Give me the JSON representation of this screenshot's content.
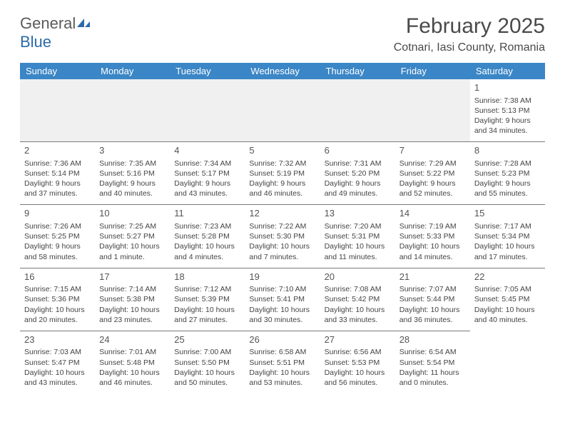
{
  "logo": {
    "text1": "General",
    "text2": "Blue"
  },
  "title": "February 2025",
  "location": "Cotnari, Iasi County, Romania",
  "colors": {
    "header_bg": "#3b86c6",
    "header_fg": "#ffffff",
    "logo_gray": "#5a5a5a",
    "logo_blue": "#2d6aa8",
    "rule": "#7a7a7a",
    "spacer_bg": "#f0f0f0"
  },
  "days_of_week": [
    "Sunday",
    "Monday",
    "Tuesday",
    "Wednesday",
    "Thursday",
    "Friday",
    "Saturday"
  ],
  "weeks": [
    [
      null,
      null,
      null,
      null,
      null,
      null,
      {
        "n": "1",
        "sunrise": "7:38 AM",
        "sunset": "5:13 PM",
        "daylight": "9 hours and 34 minutes."
      }
    ],
    [
      {
        "n": "2",
        "sunrise": "7:36 AM",
        "sunset": "5:14 PM",
        "daylight": "9 hours and 37 minutes."
      },
      {
        "n": "3",
        "sunrise": "7:35 AM",
        "sunset": "5:16 PM",
        "daylight": "9 hours and 40 minutes."
      },
      {
        "n": "4",
        "sunrise": "7:34 AM",
        "sunset": "5:17 PM",
        "daylight": "9 hours and 43 minutes."
      },
      {
        "n": "5",
        "sunrise": "7:32 AM",
        "sunset": "5:19 PM",
        "daylight": "9 hours and 46 minutes."
      },
      {
        "n": "6",
        "sunrise": "7:31 AM",
        "sunset": "5:20 PM",
        "daylight": "9 hours and 49 minutes."
      },
      {
        "n": "7",
        "sunrise": "7:29 AM",
        "sunset": "5:22 PM",
        "daylight": "9 hours and 52 minutes."
      },
      {
        "n": "8",
        "sunrise": "7:28 AM",
        "sunset": "5:23 PM",
        "daylight": "9 hours and 55 minutes."
      }
    ],
    [
      {
        "n": "9",
        "sunrise": "7:26 AM",
        "sunset": "5:25 PM",
        "daylight": "9 hours and 58 minutes."
      },
      {
        "n": "10",
        "sunrise": "7:25 AM",
        "sunset": "5:27 PM",
        "daylight": "10 hours and 1 minute."
      },
      {
        "n": "11",
        "sunrise": "7:23 AM",
        "sunset": "5:28 PM",
        "daylight": "10 hours and 4 minutes."
      },
      {
        "n": "12",
        "sunrise": "7:22 AM",
        "sunset": "5:30 PM",
        "daylight": "10 hours and 7 minutes."
      },
      {
        "n": "13",
        "sunrise": "7:20 AM",
        "sunset": "5:31 PM",
        "daylight": "10 hours and 11 minutes."
      },
      {
        "n": "14",
        "sunrise": "7:19 AM",
        "sunset": "5:33 PM",
        "daylight": "10 hours and 14 minutes."
      },
      {
        "n": "15",
        "sunrise": "7:17 AM",
        "sunset": "5:34 PM",
        "daylight": "10 hours and 17 minutes."
      }
    ],
    [
      {
        "n": "16",
        "sunrise": "7:15 AM",
        "sunset": "5:36 PM",
        "daylight": "10 hours and 20 minutes."
      },
      {
        "n": "17",
        "sunrise": "7:14 AM",
        "sunset": "5:38 PM",
        "daylight": "10 hours and 23 minutes."
      },
      {
        "n": "18",
        "sunrise": "7:12 AM",
        "sunset": "5:39 PM",
        "daylight": "10 hours and 27 minutes."
      },
      {
        "n": "19",
        "sunrise": "7:10 AM",
        "sunset": "5:41 PM",
        "daylight": "10 hours and 30 minutes."
      },
      {
        "n": "20",
        "sunrise": "7:08 AM",
        "sunset": "5:42 PM",
        "daylight": "10 hours and 33 minutes."
      },
      {
        "n": "21",
        "sunrise": "7:07 AM",
        "sunset": "5:44 PM",
        "daylight": "10 hours and 36 minutes."
      },
      {
        "n": "22",
        "sunrise": "7:05 AM",
        "sunset": "5:45 PM",
        "daylight": "10 hours and 40 minutes."
      }
    ],
    [
      {
        "n": "23",
        "sunrise": "7:03 AM",
        "sunset": "5:47 PM",
        "daylight": "10 hours and 43 minutes."
      },
      {
        "n": "24",
        "sunrise": "7:01 AM",
        "sunset": "5:48 PM",
        "daylight": "10 hours and 46 minutes."
      },
      {
        "n": "25",
        "sunrise": "7:00 AM",
        "sunset": "5:50 PM",
        "daylight": "10 hours and 50 minutes."
      },
      {
        "n": "26",
        "sunrise": "6:58 AM",
        "sunset": "5:51 PM",
        "daylight": "10 hours and 53 minutes."
      },
      {
        "n": "27",
        "sunrise": "6:56 AM",
        "sunset": "5:53 PM",
        "daylight": "10 hours and 56 minutes."
      },
      {
        "n": "28",
        "sunrise": "6:54 AM",
        "sunset": "5:54 PM",
        "daylight": "11 hours and 0 minutes."
      },
      null
    ]
  ],
  "labels": {
    "sunrise": "Sunrise: ",
    "sunset": "Sunset: ",
    "daylight": "Daylight: "
  }
}
